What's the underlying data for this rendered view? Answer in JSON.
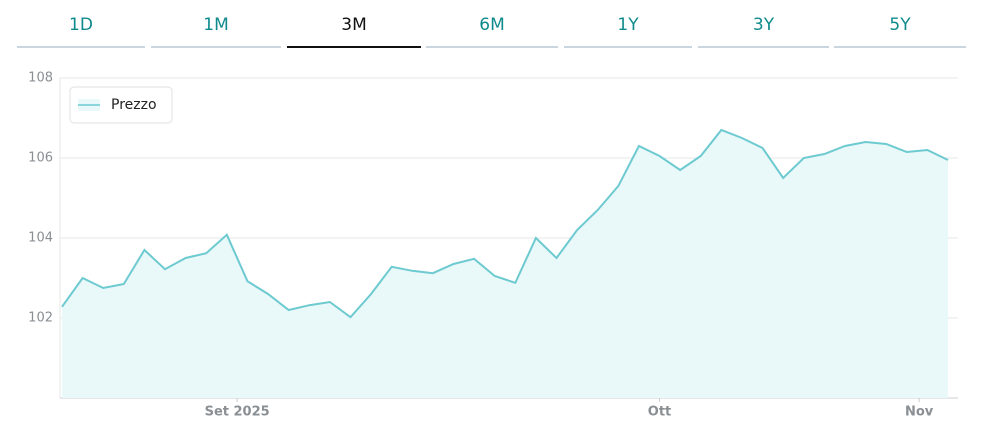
{
  "tabs": {
    "items": [
      "1D",
      "1M",
      "3M",
      "6M",
      "1Y",
      "3Y",
      "5Y"
    ],
    "selected": "3M"
  },
  "chart_data": {
    "type": "area",
    "series": [
      {
        "name": "Prezzo",
        "color": "#6ccad0",
        "fill": "#e9f8f9",
        "values": [
          102.28,
          103.0,
          102.75,
          102.85,
          103.7,
          103.22,
          103.5,
          103.62,
          104.08,
          102.92,
          102.6,
          102.2,
          102.32,
          102.4,
          102.02,
          102.6,
          103.28,
          103.18,
          103.12,
          103.35,
          103.48,
          103.05,
          102.88,
          104.0,
          103.5,
          104.2,
          104.7,
          105.3,
          106.3,
          106.05,
          105.7,
          106.05,
          106.7,
          106.5,
          106.25,
          105.5,
          106.0,
          106.1,
          106.3,
          106.4,
          106.35,
          106.15,
          106.2,
          105.95
        ]
      }
    ],
    "xlim": [
      0,
      43
    ],
    "xticks": [
      {
        "value": 8.5,
        "label": "Set 2025"
      },
      {
        "value": 29,
        "label": "Ott"
      },
      {
        "value": 41.6,
        "label": "Nov"
      }
    ],
    "ylim": [
      100,
      108
    ],
    "yticks": [
      102,
      104,
      106,
      108
    ],
    "grid": true,
    "legend": "top-left"
  }
}
